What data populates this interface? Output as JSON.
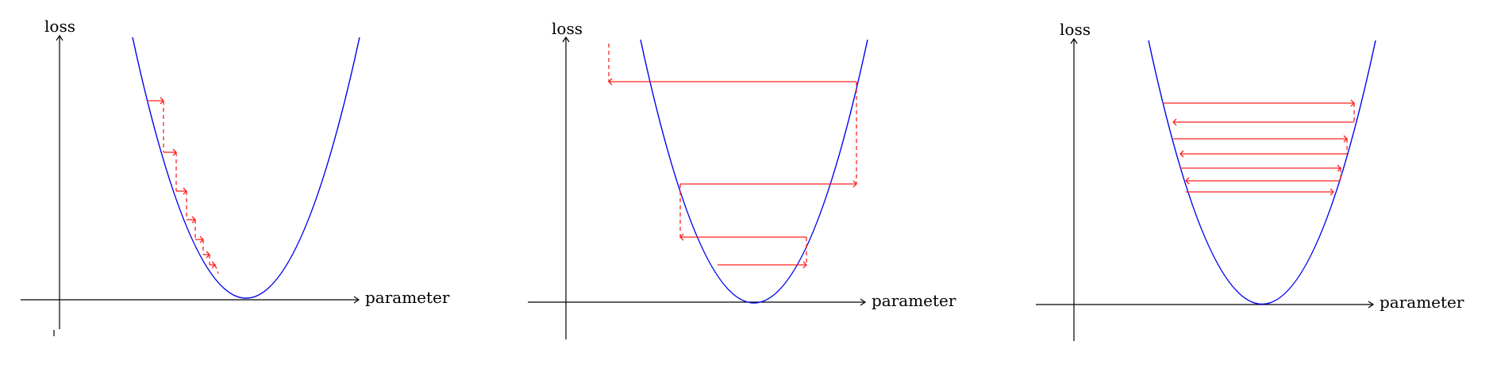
{
  "panels": [
    {
      "id": "small-learning-rate",
      "y_label": "loss",
      "x_label": "parameter",
      "behavior": "converging-small-steps"
    },
    {
      "id": "large-learning-rate",
      "y_label": "loss",
      "x_label": "parameter",
      "behavior": "oscillating-converging"
    },
    {
      "id": "too-large-learning-rate",
      "y_label": "loss",
      "x_label": "parameter",
      "behavior": "oscillating-non-converging"
    }
  ],
  "colors": {
    "axes": "#000000",
    "curve": "#0000ee",
    "steps": "#ff2020"
  }
}
